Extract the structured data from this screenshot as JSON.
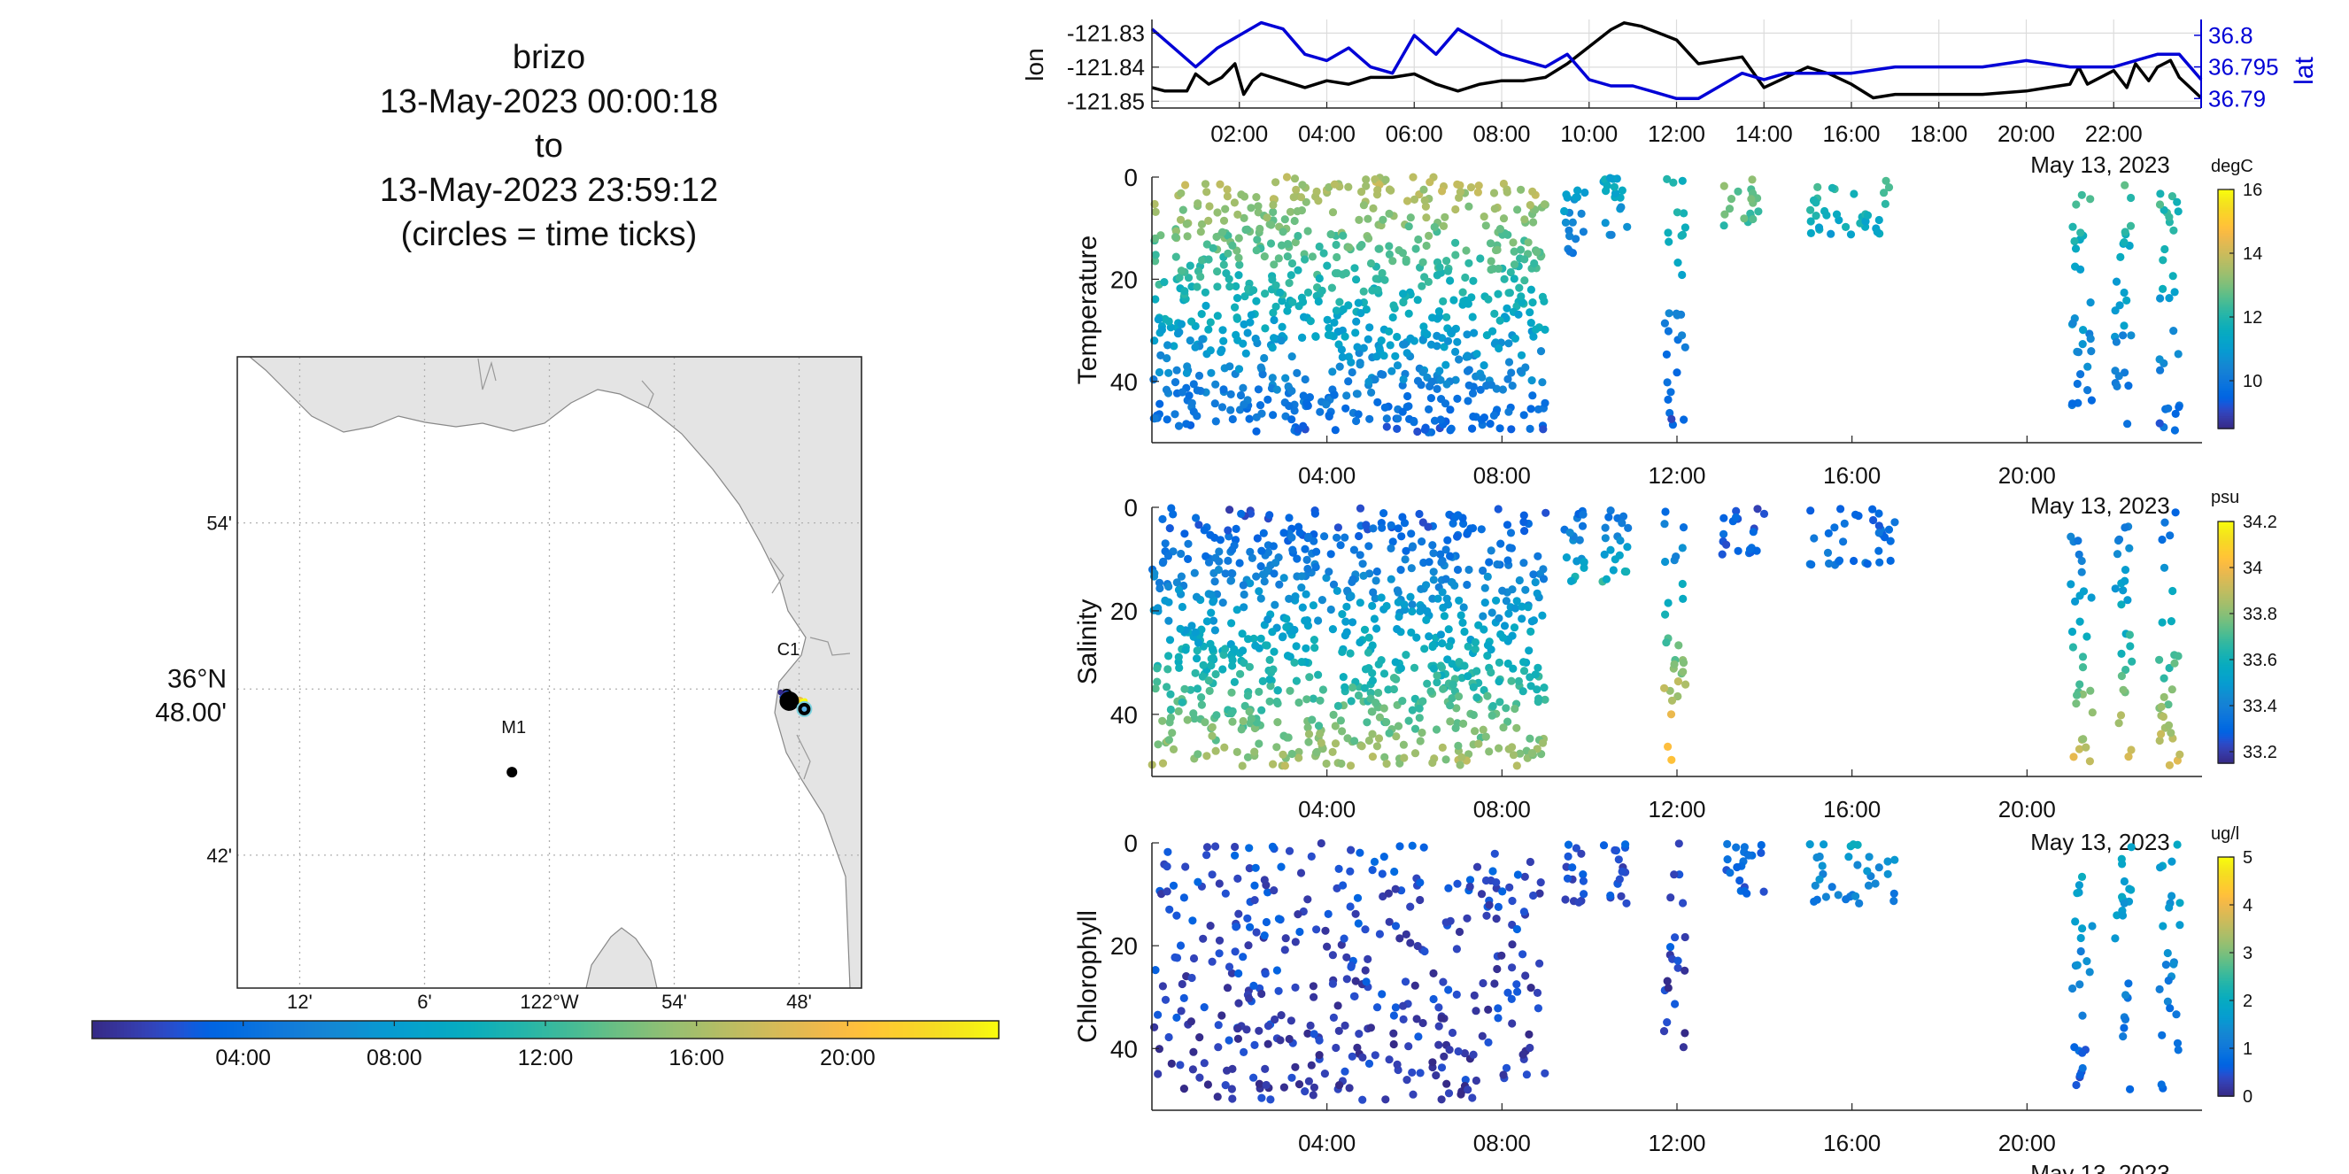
{
  "title": {
    "lines": [
      "brizo",
      "13-May-2023 00:00:18",
      "to",
      "13-May-2023 23:59:12",
      "(circles = time ticks)"
    ]
  },
  "colors": {
    "track_line": "#000000",
    "lat_line": "#0000d6",
    "land": "#e4e4e4",
    "coast": "#888888",
    "grid": "#b0b0b0"
  },
  "chart_data": [
    {
      "type": "map",
      "name": "track-map",
      "lon_ticks": [
        "12'",
        "6'",
        "122°W",
        "54'",
        "48'"
      ],
      "lon_tick_values": [
        -122.2,
        -122.1,
        -122.0,
        -121.9,
        -121.8
      ],
      "lat_ticks": [
        "54'",
        "42'"
      ],
      "lat_tick_values": [
        36.9,
        36.7
      ],
      "lat_center_label": [
        "36°N",
        "48.00'"
      ],
      "lat_center_value": 36.8,
      "xlim": [
        -122.25,
        -121.75
      ],
      "ylim": [
        36.62,
        37.0
      ],
      "grid": true,
      "stations": [
        {
          "label": "C1",
          "lon": -121.81,
          "lat": 36.797
        },
        {
          "label": "M1",
          "lon": -122.03,
          "lat": 36.75
        }
      ],
      "colorbar": {
        "ticks": [
          "04:00",
          "08:00",
          "12:00",
          "16:00",
          "20:00"
        ],
        "tick_values": [
          4,
          8,
          12,
          16,
          20
        ],
        "range": [
          0,
          24
        ],
        "colormap": "parula"
      }
    },
    {
      "type": "line",
      "name": "position-panel",
      "x_ticks": [
        "02:00",
        "04:00",
        "06:00",
        "08:00",
        "10:00",
        "12:00",
        "14:00",
        "16:00",
        "18:00",
        "20:00",
        "22:00"
      ],
      "x_tick_values": [
        2,
        4,
        6,
        8,
        10,
        12,
        14,
        16,
        18,
        20,
        22
      ],
      "date_label": "May 13, 2023",
      "xlim": [
        0,
        24
      ],
      "grid": true,
      "left_axis": {
        "label": "lon",
        "ticks": [
          "-121.83",
          "-121.84",
          "-121.85"
        ],
        "tick_values": [
          -121.83,
          -121.84,
          -121.85
        ],
        "ylim": [
          -121.852,
          -121.826
        ]
      },
      "right_axis": {
        "label": "lat",
        "ticks": [
          "36.8",
          "36.795",
          "36.79"
        ],
        "tick_values": [
          36.8,
          36.795,
          36.79
        ],
        "ylim": [
          36.7885,
          36.8025
        ]
      },
      "series": [
        {
          "axis": "left",
          "x": [
            0,
            0.3,
            0.8,
            1.0,
            1.3,
            1.6,
            1.9,
            2.1,
            2.3,
            2.5,
            3.0,
            3.5,
            4.0,
            4.5,
            5.0,
            5.5,
            6.0,
            6.5,
            7.0,
            7.5,
            8.0,
            8.5,
            9.0,
            9.5,
            10.0,
            10.5,
            10.8,
            11.2,
            11.6,
            12.0,
            12.5,
            13.0,
            13.5,
            14.0,
            14.5,
            15.0,
            15.5,
            16.0,
            16.5,
            17.0,
            18.0,
            19.0,
            20.0,
            20.5,
            21.0,
            21.2,
            21.4,
            22.0,
            22.3,
            22.5,
            22.8,
            23.0,
            23.3,
            23.5,
            24.0
          ],
          "values": [
            -121.846,
            -121.847,
            -121.847,
            -121.842,
            -121.845,
            -121.843,
            -121.839,
            -121.848,
            -121.844,
            -121.842,
            -121.844,
            -121.846,
            -121.844,
            -121.845,
            -121.843,
            -121.843,
            -121.842,
            -121.845,
            -121.847,
            -121.845,
            -121.844,
            -121.844,
            -121.843,
            -121.839,
            -121.834,
            -121.829,
            -121.827,
            -121.828,
            -121.83,
            -121.832,
            -121.839,
            -121.838,
            -121.837,
            -121.846,
            -121.843,
            -121.84,
            -121.842,
            -121.845,
            -121.849,
            -121.848,
            -121.848,
            -121.848,
            -121.847,
            -121.846,
            -121.845,
            -121.84,
            -121.845,
            -121.841,
            -121.846,
            -121.839,
            -121.844,
            -121.84,
            -121.838,
            -121.843,
            -121.849
          ]
        },
        {
          "axis": "right",
          "x": [
            0,
            0.5,
            1.0,
            1.5,
            2.0,
            2.5,
            3.0,
            3.5,
            4.0,
            4.5,
            5.0,
            5.5,
            6.0,
            6.5,
            7.0,
            7.5,
            8.0,
            8.5,
            9.0,
            9.5,
            10.0,
            10.5,
            11.0,
            11.5,
            12.0,
            12.5,
            13.0,
            13.5,
            14.0,
            14.5,
            15.0,
            16.0,
            17.0,
            18.0,
            19.0,
            20.0,
            21.0,
            22.0,
            22.5,
            23.0,
            23.5,
            24.0
          ],
          "values": [
            36.801,
            36.798,
            36.795,
            36.798,
            36.8,
            36.802,
            36.801,
            36.797,
            36.796,
            36.798,
            36.795,
            36.794,
            36.8,
            36.797,
            36.801,
            36.799,
            36.797,
            36.796,
            36.795,
            36.797,
            36.793,
            36.792,
            36.792,
            36.791,
            36.79,
            36.79,
            36.792,
            36.794,
            36.793,
            36.794,
            36.794,
            36.794,
            36.795,
            36.795,
            36.795,
            36.796,
            36.795,
            36.795,
            36.796,
            36.797,
            36.797,
            36.793
          ]
        }
      ]
    },
    {
      "type": "scatter",
      "name": "temperature-panel",
      "ylabel": "Temperature",
      "y_ticks": [
        "0",
        "20",
        "40"
      ],
      "y_tick_values": [
        0,
        20,
        40
      ],
      "ylim": [
        0,
        52
      ],
      "y_reversed": true,
      "x_ticks": [
        "04:00",
        "08:00",
        "12:00",
        "16:00",
        "20:00"
      ],
      "x_tick_values": [
        4,
        8,
        12,
        16,
        20
      ],
      "xlim": [
        0,
        24
      ],
      "date_label": "May 13, 2023",
      "colorbar": {
        "units": "degC",
        "ticks": [
          "16",
          "14",
          "12",
          "10"
        ],
        "tick_values": [
          16,
          14,
          12,
          10
        ],
        "range": [
          8.5,
          16
        ]
      },
      "data_regions": [
        {
          "x": [
            0,
            9
          ],
          "depth": [
            0,
            50
          ],
          "c_surface": 13.8,
          "c_deep": 9.5,
          "density": 1
        },
        {
          "x": [
            9.4,
            9.9
          ],
          "depth": [
            0,
            15
          ],
          "c_surface": 11.5,
          "c_deep": 10,
          "density": 0.5
        },
        {
          "x": [
            10.3,
            10.9
          ],
          "depth": [
            0,
            15
          ],
          "c_surface": 11.5,
          "c_deep": 10,
          "density": 0.5
        },
        {
          "x": [
            11.7,
            12.2
          ],
          "depth": [
            0,
            50
          ],
          "c_surface": 12,
          "c_deep": 9.2,
          "density": 0.4
        },
        {
          "x": [
            13.0,
            14.0
          ],
          "depth": [
            0,
            10
          ],
          "c_surface": 13,
          "c_deep": 12.5,
          "density": 0.4
        },
        {
          "x": [
            15.0,
            17.0
          ],
          "depth": [
            0,
            12
          ],
          "c_surface": 12.5,
          "c_deep": 11.2,
          "density": 0.5
        },
        {
          "x": [
            21.0,
            21.5
          ],
          "depth": [
            0,
            50
          ],
          "c_surface": 12.5,
          "c_deep": 9.5,
          "density": 0.4
        },
        {
          "x": [
            22.0,
            22.4
          ],
          "depth": [
            0,
            50
          ],
          "c_surface": 12.5,
          "c_deep": 9.5,
          "density": 0.4
        },
        {
          "x": [
            23.0,
            23.5
          ],
          "depth": [
            0,
            50
          ],
          "c_surface": 12.5,
          "c_deep": 9.5,
          "density": 0.4
        }
      ]
    },
    {
      "type": "scatter",
      "name": "salinity-panel",
      "ylabel": "Salinity",
      "y_ticks": [
        "0",
        "20",
        "40"
      ],
      "y_tick_values": [
        0,
        20,
        40
      ],
      "ylim": [
        0,
        52
      ],
      "y_reversed": true,
      "x_ticks": [
        "04:00",
        "08:00",
        "12:00",
        "16:00",
        "20:00"
      ],
      "x_tick_values": [
        4,
        8,
        12,
        16,
        20
      ],
      "xlim": [
        0,
        24
      ],
      "date_label": "May 13, 2023",
      "colorbar": {
        "units": "psu",
        "ticks": [
          "34.2",
          "34",
          "33.8",
          "33.6",
          "33.4",
          "33.2"
        ],
        "tick_values": [
          34.2,
          34.0,
          33.8,
          33.6,
          33.4,
          33.2
        ],
        "range": [
          33.15,
          34.2
        ]
      },
      "data_regions": [
        {
          "x": [
            0,
            9
          ],
          "depth": [
            0,
            50
          ],
          "c_surface": 33.25,
          "c_deep": 33.85,
          "density": 1
        },
        {
          "x": [
            9.4,
            9.9
          ],
          "depth": [
            0,
            15
          ],
          "c_surface": 33.3,
          "c_deep": 33.6,
          "density": 0.5
        },
        {
          "x": [
            10.3,
            10.9
          ],
          "depth": [
            0,
            15
          ],
          "c_surface": 33.3,
          "c_deep": 33.65,
          "density": 0.5
        },
        {
          "x": [
            11.7,
            12.2
          ],
          "depth": [
            0,
            50
          ],
          "c_surface": 33.3,
          "c_deep": 34.1,
          "density": 0.4
        },
        {
          "x": [
            13.0,
            14.0
          ],
          "depth": [
            0,
            10
          ],
          "c_surface": 33.25,
          "c_deep": 33.3,
          "density": 0.4
        },
        {
          "x": [
            15.0,
            17.0
          ],
          "depth": [
            0,
            12
          ],
          "c_surface": 33.3,
          "c_deep": 33.35,
          "density": 0.5
        },
        {
          "x": [
            21.0,
            21.5
          ],
          "depth": [
            0,
            50
          ],
          "c_surface": 33.3,
          "c_deep": 33.95,
          "density": 0.4
        },
        {
          "x": [
            22.0,
            22.4
          ],
          "depth": [
            0,
            50
          ],
          "c_surface": 33.3,
          "c_deep": 33.95,
          "density": 0.4
        },
        {
          "x": [
            23.0,
            23.5
          ],
          "depth": [
            0,
            50
          ],
          "c_surface": 33.3,
          "c_deep": 33.95,
          "density": 0.4
        }
      ]
    },
    {
      "type": "scatter",
      "name": "chlorophyll-panel",
      "ylabel": "Chlorophyll",
      "y_ticks": [
        "0",
        "20",
        "40"
      ],
      "y_tick_values": [
        0,
        20,
        40
      ],
      "ylim": [
        0,
        52
      ],
      "y_reversed": true,
      "x_ticks": [
        "04:00",
        "08:00",
        "12:00",
        "16:00",
        "20:00"
      ],
      "x_tick_values": [
        4,
        8,
        12,
        16,
        20
      ],
      "xlim": [
        0,
        24
      ],
      "date_label": "May 13, 2023",
      "colorbar": {
        "units": "ug/l",
        "ticks": [
          "5",
          "4",
          "3",
          "2",
          "1",
          "0"
        ],
        "tick_values": [
          5,
          4,
          3,
          2,
          1,
          0
        ],
        "range": [
          0,
          5
        ]
      },
      "data_regions": [
        {
          "x": [
            0,
            9
          ],
          "depth": [
            0,
            50
          ],
          "c_surface": 0.5,
          "c_deep": 0.2,
          "density": 0.45
        },
        {
          "x": [
            9.4,
            9.9
          ],
          "depth": [
            0,
            12
          ],
          "c_surface": 0.6,
          "c_deep": 0.3,
          "density": 0.3
        },
        {
          "x": [
            10.3,
            10.9
          ],
          "depth": [
            0,
            12
          ],
          "c_surface": 0.6,
          "c_deep": 0.3,
          "density": 0.3
        },
        {
          "x": [
            11.7,
            12.2
          ],
          "depth": [
            0,
            40
          ],
          "c_surface": 0.5,
          "c_deep": 0.2,
          "density": 0.25
        },
        {
          "x": [
            13.0,
            14.0
          ],
          "depth": [
            0,
            10
          ],
          "c_surface": 0.8,
          "c_deep": 0.6,
          "density": 0.5
        },
        {
          "x": [
            15.0,
            17.0
          ],
          "depth": [
            0,
            12
          ],
          "c_surface": 1.8,
          "c_deep": 1.0,
          "density": 0.5
        },
        {
          "x": [
            21.0,
            21.5
          ],
          "depth": [
            0,
            48
          ],
          "c_surface": 2.0,
          "c_deep": 0.5,
          "density": 0.3
        },
        {
          "x": [
            22.0,
            22.4
          ],
          "depth": [
            0,
            48
          ],
          "c_surface": 2.0,
          "c_deep": 0.5,
          "density": 0.3
        },
        {
          "x": [
            23.0,
            23.5
          ],
          "depth": [
            0,
            48
          ],
          "c_surface": 2.0,
          "c_deep": 0.5,
          "density": 0.3
        }
      ]
    }
  ]
}
